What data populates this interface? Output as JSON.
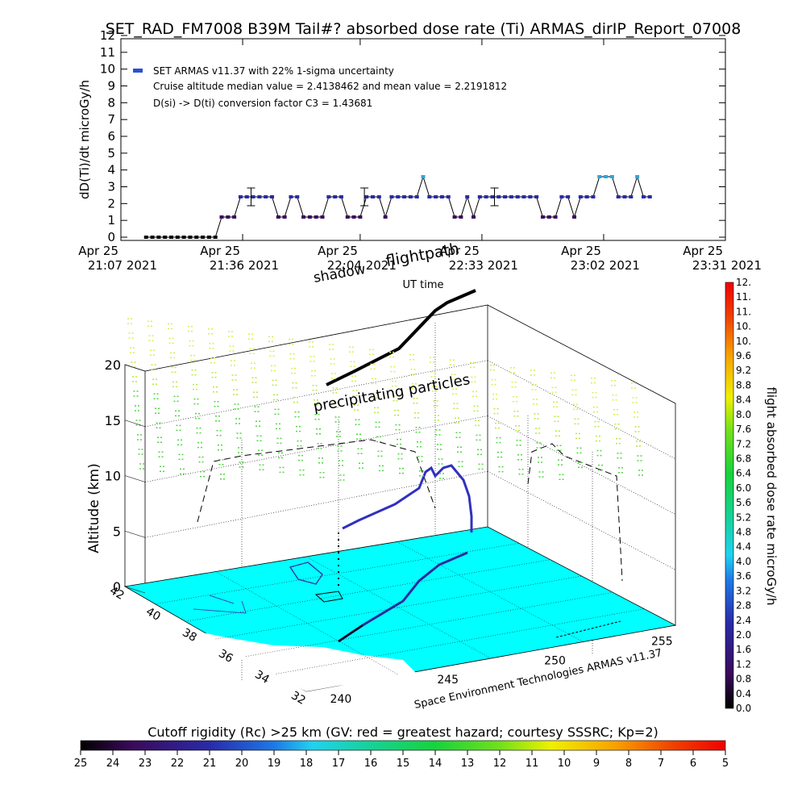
{
  "title": "SET_RAD_FM7008  B39M Tail#? absorbed dose rate (Ti) ARMAS_dirIP_Report_07008",
  "chart_data": [
    {
      "type": "line",
      "ylabel": "dD(Ti)/dt microGy/h",
      "xlabel": "UT time",
      "ylim": [
        0,
        12
      ],
      "yticks": [
        "0",
        "1",
        "2",
        "3",
        "4",
        "5",
        "6",
        "7",
        "8",
        "9",
        "10",
        "11",
        "12"
      ],
      "xlim_minutes": [
        0,
        144
      ],
      "xticks": [
        {
          "line1": "Apr 25",
          "line2": "21:07 2021",
          "minute": 0
        },
        {
          "line1": "Apr 25",
          "line2": "21:36 2021",
          "minute": 29
        },
        {
          "line1": "Apr 25",
          "line2": "22:04 2021",
          "minute": 57
        },
        {
          "line1": "Apr 25",
          "line2": "22:33 2021",
          "minute": 86
        },
        {
          "line1": "Apr 25",
          "line2": "23:02 2021",
          "minute": 115
        },
        {
          "line1": "Apr 25",
          "line2": "23:31 2021",
          "minute": 144
        }
      ],
      "legend": [
        "SET ARMAS v11.37 with 22% 1-sigma uncertainty",
        "Cruise altitude median value = 2.4138462 and mean value = 2.2191812",
        "D(si) -> D(ti) conversion factor C3 = 1.43681"
      ],
      "series": [
        {
          "minutes": [
            6,
            7.5,
            9,
            10.5,
            12,
            13.5,
            15,
            16.5,
            18,
            19.5,
            21,
            22.5,
            24,
            25.5,
            27,
            28.5,
            30,
            31.5,
            33,
            34.5,
            36,
            37.5,
            39,
            40.5,
            42,
            43.5,
            45,
            46.5,
            48,
            49.5,
            51,
            52.5,
            54,
            55.5,
            57,
            58.5,
            60,
            61.5,
            63,
            64.5,
            66,
            67.5,
            69,
            70.5,
            72,
            73.5,
            75,
            76.5,
            78,
            79.5,
            81,
            82.5,
            84,
            85.5,
            87,
            88.5,
            90,
            91.5,
            93,
            94.5,
            96,
            97.5,
            99,
            100.5,
            102,
            103.5,
            105,
            106.5,
            108,
            109.5,
            111,
            112.5,
            114,
            115.5,
            117,
            118.5,
            120,
            121.5,
            123,
            124.5,
            126
          ],
          "values": [
            0,
            0,
            0,
            0,
            0,
            0,
            0,
            0,
            0,
            0,
            0,
            0,
            1.2,
            1.2,
            1.2,
            2.4,
            2.4,
            2.4,
            2.4,
            2.4,
            2.4,
            1.2,
            1.2,
            2.4,
            2.4,
            1.2,
            1.2,
            1.2,
            1.2,
            2.4,
            2.4,
            2.4,
            1.2,
            1.2,
            1.2,
            2.4,
            2.4,
            2.4,
            1.2,
            2.4,
            2.4,
            2.4,
            2.4,
            2.4,
            3.6,
            2.4,
            2.4,
            2.4,
            2.4,
            1.2,
            1.2,
            2.4,
            1.2,
            2.4,
            2.4,
            2.4,
            2.4,
            2.4,
            2.4,
            2.4,
            2.4,
            2.4,
            2.4,
            1.2,
            1.2,
            1.2,
            2.4,
            2.4,
            1.2,
            2.4,
            2.4,
            2.4,
            3.6,
            3.6,
            3.6,
            2.4,
            2.4,
            2.4,
            3.6,
            2.4,
            2.4
          ]
        }
      ],
      "error_bars_minutes": [
        31,
        58,
        89
      ],
      "error_bar_value": 2.4
    },
    {
      "type": "scatter",
      "subtitle": "flightpath",
      "annotations": [
        "shadow",
        "precipitating particles",
        "Space Environment Technologies ARMAS v11.37"
      ],
      "zlabel": "Altitude (km)",
      "zticks": [
        "0",
        "5",
        "10",
        "15",
        "20"
      ],
      "lat_ticks": [
        "42",
        "40",
        "38",
        "36",
        "34",
        "32"
      ],
      "lon_ticks": [
        "240",
        "245",
        "250",
        "255"
      ],
      "colorbar": {
        "label": "flight absorbed dose rate microGy/h",
        "ticks": [
          "0.0",
          "0.4",
          "0.8",
          "1.2",
          "1.6",
          "2.0",
          "2.4",
          "2.8",
          "3.2",
          "3.6",
          "4.0",
          "4.4",
          "4.8",
          "5.2",
          "5.6",
          "6.0",
          "6.4",
          "6.8",
          "7.2",
          "7.6",
          "8.0",
          "8.4",
          "8.8",
          "9.2",
          "9.6",
          "10.",
          "10.",
          "11.",
          "11.",
          "12."
        ]
      },
      "rigidity": {
        "label": "Cutoff rigidity (Rc) >25 km (GV: red = greatest hazard; courtesy SSSRC; Kp=2)",
        "ticks": [
          "25",
          "24",
          "23",
          "22",
          "21",
          "20",
          "19",
          "18",
          "17",
          "16",
          "15",
          "14",
          "13",
          "12",
          "11",
          "10",
          "9",
          "8",
          "7",
          "6",
          "5"
        ]
      }
    }
  ]
}
